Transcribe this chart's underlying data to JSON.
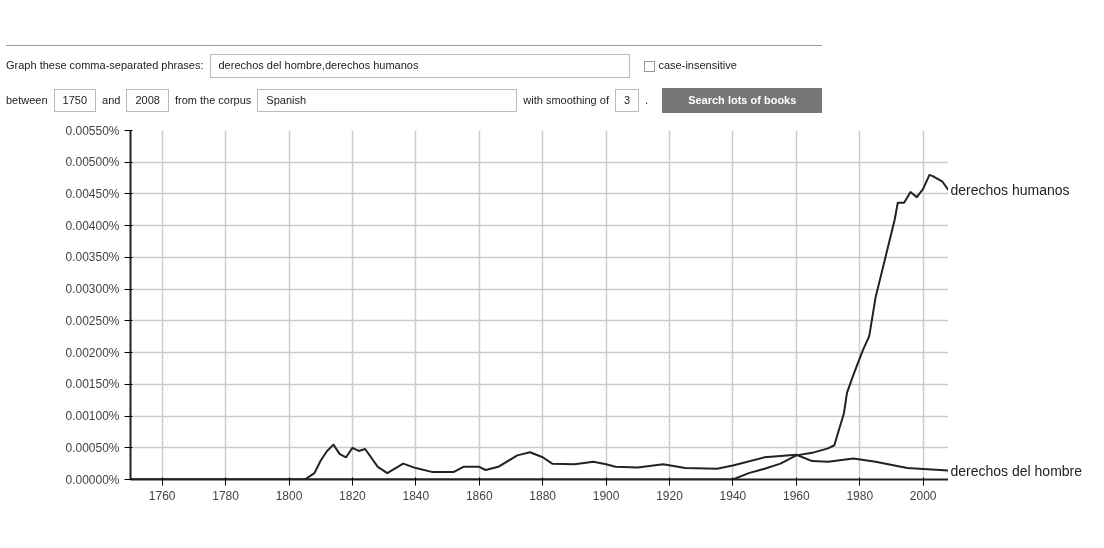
{
  "chart_data": {
    "type": "line",
    "annotations": [
      "Graph these comma-separated phrases:",
      "derechos del hombre,derechos humanos",
      "case-insensitive",
      "between",
      "1750",
      "and",
      "2008",
      "from the corpus",
      "Spanish",
      "with smoothing of",
      "3",
      ".",
      "Search lots of books"
    ],
    "series": [
      {
        "name": "derechos humanos",
        "color": "#222222",
        "x": [
          1750,
          1940,
          1945,
          1950,
          1955,
          1960,
          1965,
          1970,
          1972,
          1973,
          1975,
          1976,
          1978,
          1981,
          1983,
          1985,
          1988,
          1991,
          1992,
          1994,
          1996,
          1998,
          2000,
          2002,
          2003,
          2006,
          2008
        ],
        "values": [
          0,
          0,
          0.0001,
          0.00017,
          0.00025,
          0.00038,
          0.00042,
          0.00049,
          0.00054,
          0.00071,
          0.00104,
          0.00137,
          0.00165,
          0.00204,
          0.00226,
          0.00287,
          0.00348,
          0.00409,
          0.00436,
          0.00436,
          0.00453,
          0.00445,
          0.00458,
          0.0048,
          0.00478,
          0.0047,
          0.00456
        ]
      },
      {
        "name": "derechos del hombre",
        "color": "#222222",
        "x": [
          1750,
          1805,
          1808,
          1810,
          1812,
          1814,
          1816,
          1818,
          1820,
          1822,
          1824,
          1828,
          1831,
          1836,
          1840,
          1845,
          1852,
          1855,
          1860,
          1862,
          1866,
          1872,
          1876,
          1880,
          1883,
          1890,
          1896,
          1900,
          1903,
          1910,
          1918,
          1925,
          1935,
          1940,
          1950,
          1960,
          1965,
          1970,
          1978,
          1985,
          1995,
          2008
        ],
        "values": [
          0,
          0,
          0.0001,
          0.0003,
          0.00045,
          0.00055,
          0.0004,
          0.00035,
          0.0005,
          0.00045,
          0.00048,
          0.0002,
          0.0001,
          0.00025,
          0.00018,
          0.00012,
          0.00012,
          0.0002,
          0.0002,
          0.00015,
          0.0002,
          0.00038,
          0.00043,
          0.00035,
          0.00025,
          0.00024,
          0.00028,
          0.00024,
          0.0002,
          0.00019,
          0.00024,
          0.00018,
          0.00017,
          0.00022,
          0.00035,
          0.00039,
          0.00029,
          0.00028,
          0.00033,
          0.00028,
          0.00018,
          0.00014
        ]
      }
    ],
    "xlim": [
      1750,
      2008
    ],
    "ylim": [
      0,
      0.0055
    ],
    "xticks": [
      1760,
      1780,
      1800,
      1820,
      1840,
      1860,
      1880,
      1900,
      1920,
      1940,
      1960,
      1980,
      2000
    ],
    "yticks": [
      {
        "value": 0,
        "label": "0.00000%"
      },
      {
        "value": 0.0005,
        "label": "0.00050%"
      },
      {
        "value": 0.001,
        "label": "0.00100%"
      },
      {
        "value": 0.0015,
        "label": "0.00150%"
      },
      {
        "value": 0.002,
        "label": "0.00200%"
      },
      {
        "value": 0.0025,
        "label": "0.00250%"
      },
      {
        "value": 0.003,
        "label": "0.00300%"
      },
      {
        "value": 0.0035,
        "label": "0.00350%"
      },
      {
        "value": 0.004,
        "label": "0.00400%"
      },
      {
        "value": 0.0045,
        "label": "0.00450%"
      },
      {
        "value": 0.005,
        "label": "0.00500%"
      },
      {
        "value": 0.0055,
        "label": "0.00550%"
      }
    ],
    "grid": true,
    "marker": "none",
    "line_style": "solid"
  }
}
